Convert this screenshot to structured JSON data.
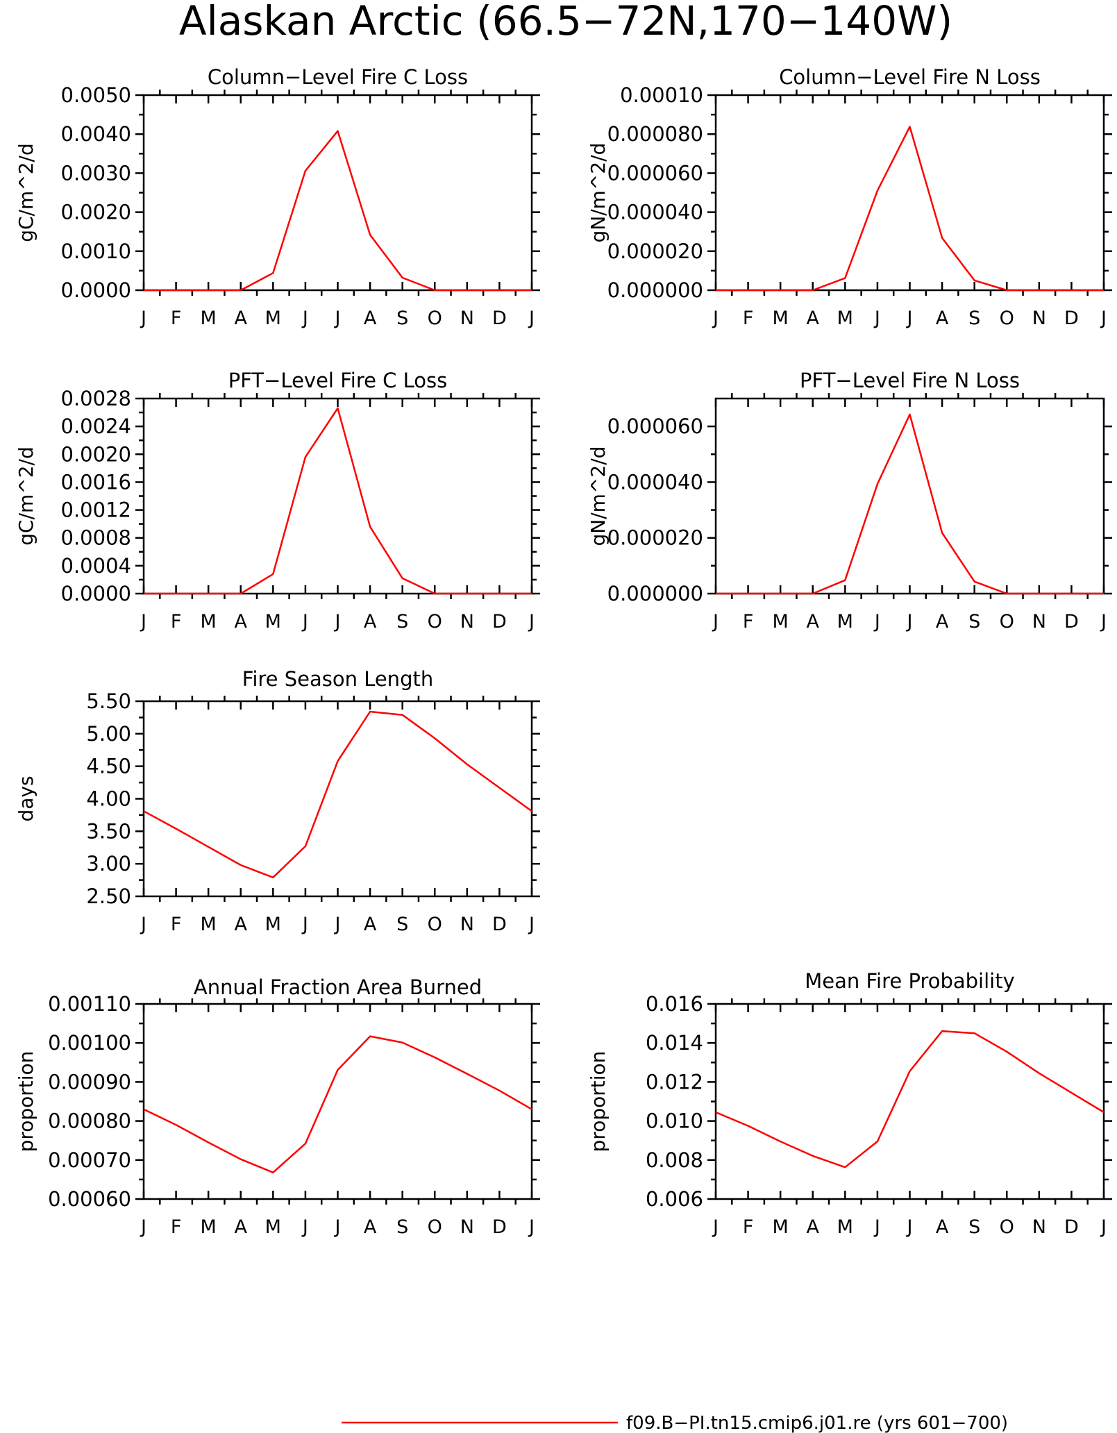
{
  "page_title": "Alaskan Arctic (66.5−72N,170−140W)",
  "months": [
    "J",
    "F",
    "M",
    "A",
    "M",
    "J",
    "J",
    "A",
    "S",
    "O",
    "N",
    "D",
    "J"
  ],
  "legend": {
    "label": "f09.B−PI.tn15.cmip6.j01.re (yrs 601−700)",
    "color": "#ff0000"
  },
  "chart_data": [
    {
      "type": "line",
      "title": "Column−Level Fire C Loss",
      "ylabel": "gC/m^2/d",
      "ylim": [
        0,
        0.005
      ],
      "yticks": [
        "0.0000",
        "0.0010",
        "0.0020",
        "0.0030",
        "0.0040",
        "0.0050"
      ],
      "series": [
        {
          "color": "#ff0000",
          "values": [
            0,
            0,
            0,
            0,
            0.00044,
            0.00306,
            0.00408,
            0.00142,
            0.00032,
            0,
            0,
            0,
            0
          ]
        }
      ]
    },
    {
      "type": "line",
      "title": "Column−Level Fire N Loss",
      "ylabel": "gN/m^2/d",
      "ylim": [
        0,
        0.0001
      ],
      "yticks": [
        "0.000000",
        "0.000020",
        "0.000040",
        "0.000060",
        "0.000080",
        "0.00010"
      ],
      "series": [
        {
          "color": "#ff0000",
          "values": [
            0,
            0,
            0,
            0,
            6.2e-06,
            5.1e-05,
            8.38e-05,
            2.68e-05,
            5e-06,
            0,
            0,
            0,
            0
          ]
        }
      ]
    },
    {
      "type": "line",
      "title": "PFT−Level Fire C Loss",
      "ylabel": "gC/m^2/d",
      "ylim": [
        0,
        0.0028
      ],
      "yticks": [
        "0.0000",
        "0.0004",
        "0.0008",
        "0.0012",
        "0.0016",
        "0.0020",
        "0.0024",
        "0.0028"
      ],
      "series": [
        {
          "color": "#ff0000",
          "values": [
            0,
            0,
            0,
            0,
            0.00028,
            0.00196,
            0.00266,
            0.00096,
            0.00022,
            0,
            0,
            0,
            0
          ]
        }
      ]
    },
    {
      "type": "line",
      "title": "PFT−Level Fire N Loss",
      "ylabel": "gN/m^2/d",
      "ylim": [
        0,
        7e-05
      ],
      "yticks": [
        "0.000000",
        "0.000020",
        "0.000040",
        "0.000060"
      ],
      "series": [
        {
          "color": "#ff0000",
          "values": [
            0,
            0,
            0,
            0,
            4.8e-06,
            3.93e-05,
            6.43e-05,
            2.18e-05,
            4.3e-06,
            0,
            0,
            0,
            0
          ]
        }
      ]
    },
    {
      "type": "line",
      "title": "Fire Season Length",
      "ylabel": "days",
      "ylim": [
        2.5,
        5.5
      ],
      "yticks": [
        "2.50",
        "3.00",
        "3.50",
        "4.00",
        "4.50",
        "5.00",
        "5.50"
      ],
      "series": [
        {
          "color": "#ff0000",
          "values": [
            3.81,
            3.54,
            3.26,
            2.98,
            2.79,
            3.27,
            4.58,
            5.34,
            5.29,
            4.93,
            4.53,
            4.17,
            3.81
          ]
        }
      ]
    },
    {
      "type": "line",
      "title": "Annual Fraction Area Burned",
      "ylabel": "proportion",
      "ylim": [
        0.0006,
        0.0011
      ],
      "yticks": [
        "0.00060",
        "0.00070",
        "0.00080",
        "0.00090",
        "0.00100",
        "0.00110"
      ],
      "series": [
        {
          "color": "#ff0000",
          "values": [
            0.00083,
            0.00079,
            0.000745,
            0.000702,
            0.000668,
            0.000742,
            0.000931,
            0.001017,
            0.001001,
            0.000963,
            0.000921,
            0.000878,
            0.00083
          ]
        }
      ]
    },
    {
      "type": "line",
      "title": "Mean Fire Probability",
      "ylabel": "proportion",
      "ylim": [
        0.006,
        0.016
      ],
      "yticks": [
        "0.006",
        "0.008",
        "0.010",
        "0.012",
        "0.014",
        "0.016"
      ],
      "series": [
        {
          "color": "#ff0000",
          "values": [
            0.01045,
            0.00975,
            0.00895,
            0.00821,
            0.00763,
            0.00895,
            0.01255,
            0.01461,
            0.0145,
            0.01355,
            0.01245,
            0.01145,
            0.01045
          ]
        }
      ]
    }
  ]
}
